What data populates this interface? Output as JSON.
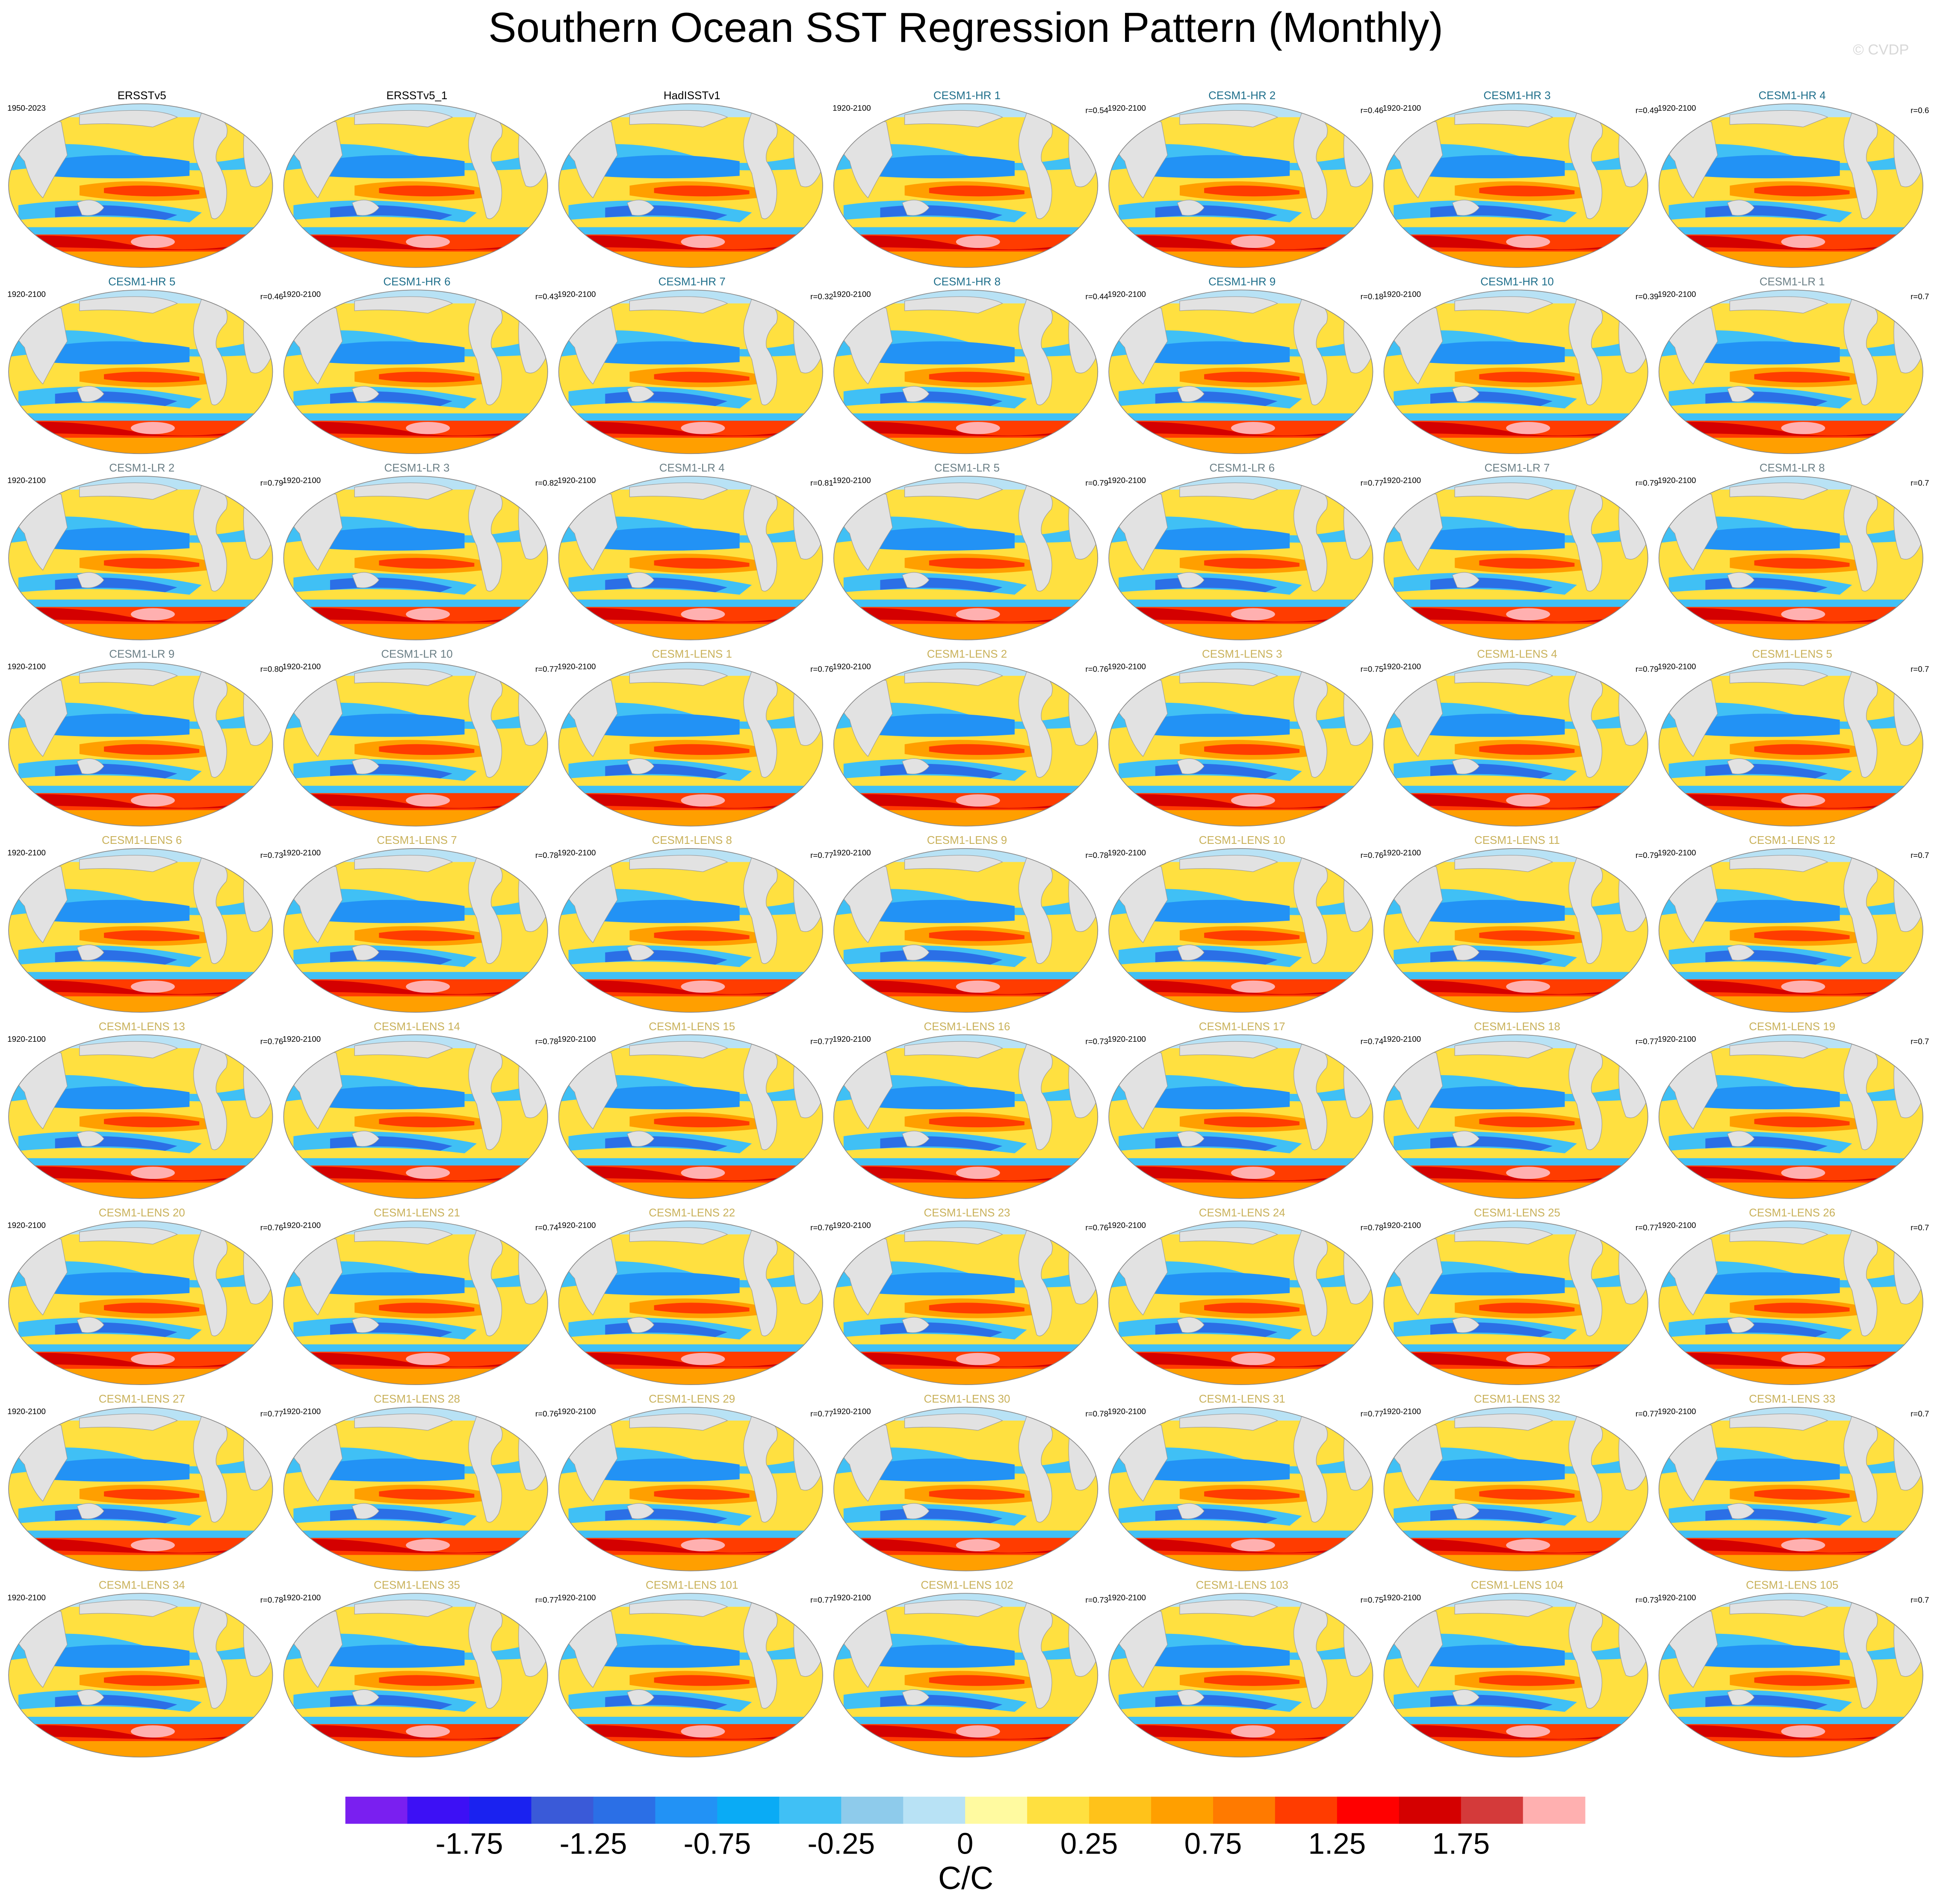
{
  "figure": {
    "title": "Southern Ocean SST Regression Pattern (Monthly)",
    "watermark": "© CVDP",
    "panels": [
      {
        "title": "ERSSTv5",
        "period": "1950-2023",
        "title_color": "#000000"
      },
      {
        "title": "ERSSTv5_1",
        "title_color": "#000000"
      },
      {
        "title": "HadISSTv1",
        "title_color": "#000000"
      },
      {
        "title": "CESM1-HR 1",
        "period": "1920-2100",
        "r": "r=0.54",
        "title_color": "#1f6f8b"
      },
      {
        "title": "CESM1-HR 2",
        "period": "1920-2100",
        "r": "r=0.46",
        "title_color": "#1f6f8b"
      },
      {
        "title": "CESM1-HR 3",
        "period": "1920-2100",
        "r": "r=0.49",
        "title_color": "#1f6f8b"
      },
      {
        "title": "CESM1-HR 4",
        "period": "1920-2100",
        "r": "r=0.6",
        "title_color": "#1f6f8b"
      },
      {
        "title": "CESM1-HR 5",
        "period": "1920-2100",
        "r": "r=0.46",
        "title_color": "#1f6f8b"
      },
      {
        "title": "CESM1-HR 6",
        "period": "1920-2100",
        "r": "r=0.43",
        "title_color": "#1f6f8b"
      },
      {
        "title": "CESM1-HR 7",
        "period": "1920-2100",
        "r": "r=0.32",
        "title_color": "#1f6f8b"
      },
      {
        "title": "CESM1-HR 8",
        "period": "1920-2100",
        "r": "r=0.44",
        "title_color": "#1f6f8b"
      },
      {
        "title": "CESM1-HR 9",
        "period": "1920-2100",
        "r": "r=0.18",
        "title_color": "#1f6f8b"
      },
      {
        "title": "CESM1-HR 10",
        "period": "1920-2100",
        "r": "r=0.39",
        "title_color": "#1f6f8b"
      },
      {
        "title": "CESM1-LR 1",
        "period": "1920-2100",
        "r": "r=0.7",
        "title_color": "#6b7f86"
      },
      {
        "title": "CESM1-LR 2",
        "period": "1920-2100",
        "r": "r=0.79",
        "title_color": "#6b7f86"
      },
      {
        "title": "CESM1-LR 3",
        "period": "1920-2100",
        "r": "r=0.82",
        "title_color": "#6b7f86"
      },
      {
        "title": "CESM1-LR 4",
        "period": "1920-2100",
        "r": "r=0.81",
        "title_color": "#6b7f86"
      },
      {
        "title": "CESM1-LR 5",
        "period": "1920-2100",
        "r": "r=0.79",
        "title_color": "#6b7f86"
      },
      {
        "title": "CESM1-LR 6",
        "period": "1920-2100",
        "r": "r=0.77",
        "title_color": "#6b7f86"
      },
      {
        "title": "CESM1-LR 7",
        "period": "1920-2100",
        "r": "r=0.79",
        "title_color": "#6b7f86"
      },
      {
        "title": "CESM1-LR 8",
        "period": "1920-2100",
        "r": "r=0.7",
        "title_color": "#6b7f86"
      },
      {
        "title": "CESM1-LR 9",
        "period": "1920-2100",
        "r": "r=0.80",
        "title_color": "#6b7f86"
      },
      {
        "title": "CESM1-LR 10",
        "period": "1920-2100",
        "r": "r=0.77",
        "title_color": "#6b7f86"
      },
      {
        "title": "CESM1-LENS 1",
        "period": "1920-2100",
        "r": "r=0.76",
        "title_color": "#c9b15a"
      },
      {
        "title": "CESM1-LENS 2",
        "period": "1920-2100",
        "r": "r=0.76",
        "title_color": "#c9b15a"
      },
      {
        "title": "CESM1-LENS 3",
        "period": "1920-2100",
        "r": "r=0.75",
        "title_color": "#c9b15a"
      },
      {
        "title": "CESM1-LENS 4",
        "period": "1920-2100",
        "r": "r=0.79",
        "title_color": "#c9b15a"
      },
      {
        "title": "CESM1-LENS 5",
        "period": "1920-2100",
        "r": "r=0.7",
        "title_color": "#c9b15a"
      },
      {
        "title": "CESM1-LENS 6",
        "period": "1920-2100",
        "r": "r=0.73",
        "title_color": "#c9b15a"
      },
      {
        "title": "CESM1-LENS 7",
        "period": "1920-2100",
        "r": "r=0.78",
        "title_color": "#c9b15a"
      },
      {
        "title": "CESM1-LENS 8",
        "period": "1920-2100",
        "r": "r=0.77",
        "title_color": "#c9b15a"
      },
      {
        "title": "CESM1-LENS 9",
        "period": "1920-2100",
        "r": "r=0.78",
        "title_color": "#c9b15a"
      },
      {
        "title": "CESM1-LENS 10",
        "period": "1920-2100",
        "r": "r=0.76",
        "title_color": "#c9b15a"
      },
      {
        "title": "CESM1-LENS 11",
        "period": "1920-2100",
        "r": "r=0.79",
        "title_color": "#c9b15a"
      },
      {
        "title": "CESM1-LENS 12",
        "period": "1920-2100",
        "r": "r=0.7",
        "title_color": "#c9b15a"
      },
      {
        "title": "CESM1-LENS 13",
        "period": "1920-2100",
        "r": "r=0.76",
        "title_color": "#c9b15a"
      },
      {
        "title": "CESM1-LENS 14",
        "period": "1920-2100",
        "r": "r=0.78",
        "title_color": "#c9b15a"
      },
      {
        "title": "CESM1-LENS 15",
        "period": "1920-2100",
        "r": "r=0.77",
        "title_color": "#c9b15a"
      },
      {
        "title": "CESM1-LENS 16",
        "period": "1920-2100",
        "r": "r=0.73",
        "title_color": "#c9b15a"
      },
      {
        "title": "CESM1-LENS 17",
        "period": "1920-2100",
        "r": "r=0.74",
        "title_color": "#c9b15a"
      },
      {
        "title": "CESM1-LENS 18",
        "period": "1920-2100",
        "r": "r=0.77",
        "title_color": "#c9b15a"
      },
      {
        "title": "CESM1-LENS 19",
        "period": "1920-2100",
        "r": "r=0.7",
        "title_color": "#c9b15a"
      },
      {
        "title": "CESM1-LENS 20",
        "period": "1920-2100",
        "r": "r=0.76",
        "title_color": "#c9b15a"
      },
      {
        "title": "CESM1-LENS 21",
        "period": "1920-2100",
        "r": "r=0.74",
        "title_color": "#c9b15a"
      },
      {
        "title": "CESM1-LENS 22",
        "period": "1920-2100",
        "r": "r=0.76",
        "title_color": "#c9b15a"
      },
      {
        "title": "CESM1-LENS 23",
        "period": "1920-2100",
        "r": "r=0.76",
        "title_color": "#c9b15a"
      },
      {
        "title": "CESM1-LENS 24",
        "period": "1920-2100",
        "r": "r=0.78",
        "title_color": "#c9b15a"
      },
      {
        "title": "CESM1-LENS 25",
        "period": "1920-2100",
        "r": "r=0.77",
        "title_color": "#c9b15a"
      },
      {
        "title": "CESM1-LENS 26",
        "period": "1920-2100",
        "r": "r=0.7",
        "title_color": "#c9b15a"
      },
      {
        "title": "CESM1-LENS 27",
        "period": "1920-2100",
        "r": "r=0.77",
        "title_color": "#c9b15a"
      },
      {
        "title": "CESM1-LENS 28",
        "period": "1920-2100",
        "r": "r=0.76",
        "title_color": "#c9b15a"
      },
      {
        "title": "CESM1-LENS 29",
        "period": "1920-2100",
        "r": "r=0.77",
        "title_color": "#c9b15a"
      },
      {
        "title": "CESM1-LENS 30",
        "period": "1920-2100",
        "r": "r=0.78",
        "title_color": "#c9b15a"
      },
      {
        "title": "CESM1-LENS 31",
        "period": "1920-2100",
        "r": "r=0.77",
        "title_color": "#c9b15a"
      },
      {
        "title": "CESM1-LENS 32",
        "period": "1920-2100",
        "r": "r=0.77",
        "title_color": "#c9b15a"
      },
      {
        "title": "CESM1-LENS 33",
        "period": "1920-2100",
        "r": "r=0.7",
        "title_color": "#c9b15a"
      },
      {
        "title": "CESM1-LENS 34",
        "period": "1920-2100",
        "r": "r=0.78",
        "title_color": "#c9b15a"
      },
      {
        "title": "CESM1-LENS 35",
        "period": "1920-2100",
        "r": "r=0.77",
        "title_color": "#c9b15a"
      },
      {
        "title": "CESM1-LENS 101",
        "period": "1920-2100",
        "r": "r=0.77",
        "title_color": "#c9b15a"
      },
      {
        "title": "CESM1-LENS 102",
        "period": "1920-2100",
        "r": "r=0.73",
        "title_color": "#c9b15a"
      },
      {
        "title": "CESM1-LENS 103",
        "period": "1920-2100",
        "r": "r=0.75",
        "title_color": "#c9b15a"
      },
      {
        "title": "CESM1-LENS 104",
        "period": "1920-2100",
        "r": "r=0.73",
        "title_color": "#c9b15a"
      },
      {
        "title": "CESM1-LENS 105",
        "period": "1920-2100",
        "r": "r=0.7",
        "title_color": "#c9b15a"
      }
    ],
    "colorbar": {
      "colors": [
        "#7a1ff0",
        "#3d10f5",
        "#1a22f0",
        "#3a5ad8",
        "#2b6fe6",
        "#2292f5",
        "#0aabf5",
        "#40c0f5",
        "#8ecbeb",
        "#b8e2f5",
        "#fffaa0",
        "#ffe040",
        "#ffc21a",
        "#ff9f00",
        "#ff7a00",
        "#ff3c00",
        "#ff0000",
        "#d40000",
        "#d43a3a",
        "#ffb0b0"
      ],
      "ticks": [
        -1.75,
        -1.25,
        -0.75,
        -0.25,
        0,
        0.25,
        0.75,
        1.25,
        1.75
      ],
      "label": "C/C"
    }
  }
}
